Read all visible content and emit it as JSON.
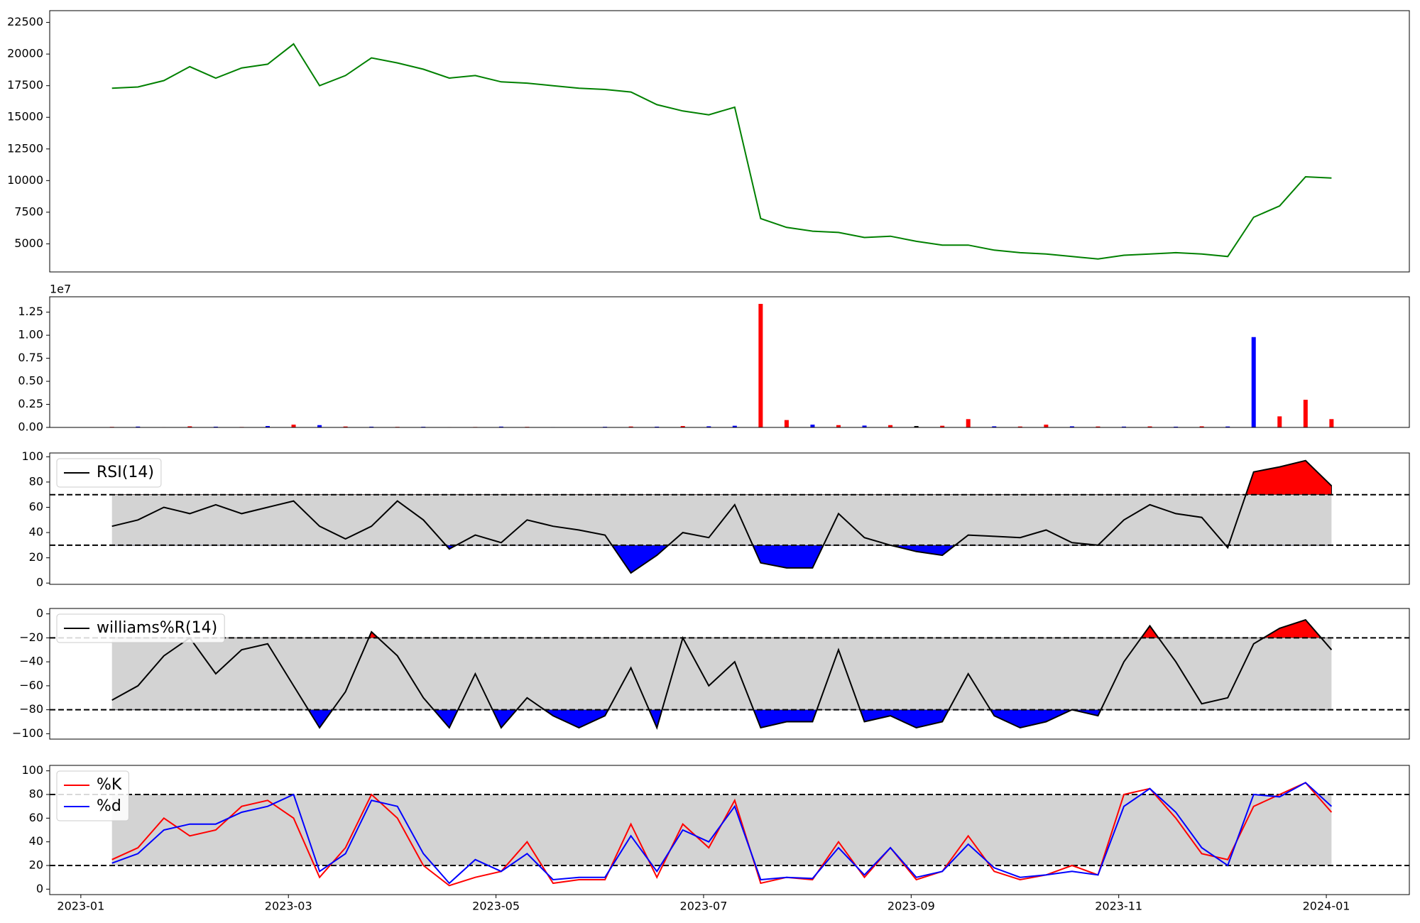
{
  "chart_data": [
    {
      "type": "line",
      "x": [
        0.3,
        0.55,
        0.8,
        1.05,
        1.3,
        1.55,
        1.8,
        2.05,
        2.3,
        2.55,
        2.8,
        3.05,
        3.3,
        3.55,
        3.8,
        4.05,
        4.3,
        4.55,
        4.8,
        5.05,
        5.3,
        5.55,
        5.8,
        6.05,
        6.3,
        6.55,
        6.8,
        7.05,
        7.3,
        7.55,
        7.8,
        8.05,
        8.3,
        8.55,
        8.8,
        9.05,
        9.3,
        9.55,
        9.8,
        10.05,
        10.3,
        10.55,
        10.8,
        11.05,
        11.3,
        11.55,
        11.8,
        12.05
      ],
      "series": [
        {
          "color": "green",
          "values": [
            17300,
            17400,
            17900,
            19000,
            18100,
            18900,
            19200,
            20800,
            17500,
            18300,
            19700,
            19300,
            18800,
            18100,
            18300,
            17800,
            17700,
            17500,
            17300,
            17200,
            17000,
            16000,
            15500,
            15200,
            15800,
            7000,
            6300,
            6000,
            5900,
            5500,
            5600,
            5200,
            4900,
            4900,
            4500,
            4300,
            4200,
            4000,
            3800,
            4100,
            4200,
            4300,
            4200,
            4000,
            7100,
            8000,
            10300,
            10200
          ]
        }
      ],
      "xlim": [
        -0.3,
        12.8
      ],
      "ylim": [
        2780,
        23430
      ],
      "yticks": [
        5000,
        7500,
        10000,
        12500,
        15000,
        17500,
        20000,
        22500
      ]
    },
    {
      "type": "bar",
      "x": [
        0.3,
        0.55,
        0.8,
        1.05,
        1.3,
        1.55,
        1.8,
        2.05,
        2.3,
        2.55,
        2.8,
        3.05,
        3.3,
        3.55,
        3.8,
        4.05,
        4.3,
        4.55,
        4.8,
        5.05,
        5.3,
        5.55,
        5.8,
        6.05,
        6.3,
        6.55,
        6.8,
        7.05,
        7.3,
        7.55,
        7.8,
        8.05,
        8.3,
        8.55,
        8.8,
        9.05,
        9.3,
        9.55,
        9.8,
        10.05,
        10.3,
        10.55,
        10.8,
        11.05,
        11.3,
        11.55,
        11.8,
        12.05
      ],
      "values": [
        60000,
        90000,
        40000,
        120000,
        80000,
        50000,
        150000,
        300000,
        250000,
        100000,
        80000,
        60000,
        70000,
        40000,
        50000,
        90000,
        60000,
        40000,
        30000,
        70000,
        100000,
        80000,
        150000,
        120000,
        180000,
        13400000,
        800000,
        300000,
        250000,
        200000,
        250000,
        150000,
        180000,
        900000,
        120000,
        100000,
        300000,
        120000,
        100000,
        90000,
        110000,
        80000,
        120000,
        100000,
        9800000,
        1200000,
        3000000,
        900000
      ],
      "colors": [
        "red",
        "blue",
        "red",
        "red",
        "blue",
        "red",
        "blue",
        "red",
        "blue",
        "red",
        "blue",
        "red",
        "blue",
        "red",
        "red",
        "blue",
        "red",
        "blue",
        "red",
        "blue",
        "red",
        "blue",
        "red",
        "blue",
        "blue",
        "red",
        "red",
        "blue",
        "red",
        "blue",
        "red",
        "black",
        "red",
        "red",
        "blue",
        "red",
        "red",
        "blue",
        "red",
        "blue",
        "red",
        "blue",
        "red",
        "blue",
        "blue",
        "red",
        "red",
        "red"
      ],
      "offset_label": "1e7",
      "xlim": [
        -0.3,
        12.8
      ],
      "ylim": [
        0,
        14170000
      ],
      "yticks": [
        {
          "value": 0,
          "label": "0.00"
        },
        {
          "value": 2500000,
          "label": "0.25"
        },
        {
          "value": 5000000,
          "label": "0.50"
        },
        {
          "value": 7500000,
          "label": "0.75"
        },
        {
          "value": 10000000,
          "label": "1.00"
        },
        {
          "value": 12500000,
          "label": "1.25"
        }
      ]
    },
    {
      "type": "oscillator",
      "x": [
        0.3,
        0.55,
        0.8,
        1.05,
        1.3,
        1.55,
        1.8,
        2.05,
        2.3,
        2.55,
        2.8,
        3.05,
        3.3,
        3.55,
        3.8,
        4.05,
        4.3,
        4.55,
        4.8,
        5.05,
        5.3,
        5.55,
        5.8,
        6.05,
        6.3,
        6.55,
        6.8,
        7.05,
        7.3,
        7.55,
        7.8,
        8.05,
        8.3,
        8.55,
        8.8,
        9.05,
        9.3,
        9.55,
        9.8,
        10.05,
        10.3,
        10.55,
        10.8,
        11.05,
        11.3,
        11.55,
        11.8,
        12.05
      ],
      "series": [
        {
          "name": "RSI(14)",
          "color": "black",
          "values": [
            45,
            50,
            60,
            55,
            62,
            55,
            60,
            65,
            45,
            35,
            45,
            65,
            50,
            27,
            38,
            32,
            50,
            45,
            42,
            38,
            8,
            22,
            40,
            36,
            62,
            16,
            12,
            12,
            55,
            36,
            30,
            25,
            22,
            38,
            37,
            36,
            42,
            32,
            30,
            50,
            62,
            55,
            52,
            28,
            88,
            92,
            97,
            77
          ]
        }
      ],
      "thresholds": [
        30,
        70
      ],
      "band_color": "lightgray",
      "above_color": "red",
      "below_color": "blue",
      "legend": "upper left",
      "xlim": [
        -0.3,
        12.8
      ],
      "ylim": [
        -1,
        103
      ],
      "yticks": [
        0,
        20,
        40,
        60,
        80,
        100
      ]
    },
    {
      "type": "oscillator",
      "x": [
        0.3,
        0.55,
        0.8,
        1.05,
        1.3,
        1.55,
        1.8,
        2.05,
        2.3,
        2.55,
        2.8,
        3.05,
        3.3,
        3.55,
        3.8,
        4.05,
        4.3,
        4.55,
        4.8,
        5.05,
        5.3,
        5.55,
        5.8,
        6.05,
        6.3,
        6.55,
        6.8,
        7.05,
        7.3,
        7.55,
        7.8,
        8.05,
        8.3,
        8.55,
        8.8,
        9.05,
        9.3,
        9.55,
        9.8,
        10.05,
        10.3,
        10.55,
        10.8,
        11.05,
        11.3,
        11.55,
        11.8,
        12.05
      ],
      "series": [
        {
          "name": "williams%R(14)",
          "color": "black",
          "values": [
            -72,
            -60,
            -35,
            -20,
            -50,
            -30,
            -25,
            -60,
            -95,
            -65,
            -15,
            -35,
            -70,
            -95,
            -50,
            -95,
            -70,
            -85,
            -95,
            -85,
            -45,
            -95,
            -20,
            -60,
            -40,
            -95,
            -90,
            -90,
            -30,
            -90,
            -85,
            -95,
            -90,
            -50,
            -85,
            -95,
            -90,
            -80,
            -85,
            -40,
            -10,
            -40,
            -75,
            -70,
            -25,
            -12,
            -5,
            -30
          ]
        }
      ],
      "thresholds": [
        -80,
        -20
      ],
      "band_color": "lightgray",
      "above_color": "red",
      "below_color": "blue",
      "legend": "upper left",
      "xlim": [
        -0.3,
        12.8
      ],
      "ylim": [
        -104.5,
        4.5
      ],
      "yticks": [
        {
          "value": -100,
          "label": "−100"
        },
        {
          "value": -80,
          "label": "−80"
        },
        {
          "value": -60,
          "label": "−60"
        },
        {
          "value": -40,
          "label": "−40"
        },
        {
          "value": -20,
          "label": "−20"
        },
        0
      ]
    },
    {
      "type": "oscillator",
      "x": [
        0.3,
        0.55,
        0.8,
        1.05,
        1.3,
        1.55,
        1.8,
        2.05,
        2.3,
        2.55,
        2.8,
        3.05,
        3.3,
        3.55,
        3.8,
        4.05,
        4.3,
        4.55,
        4.8,
        5.05,
        5.3,
        5.55,
        5.8,
        6.05,
        6.3,
        6.55,
        6.8,
        7.05,
        7.3,
        7.55,
        7.8,
        8.05,
        8.3,
        8.55,
        8.8,
        9.05,
        9.3,
        9.55,
        9.8,
        10.05,
        10.3,
        10.55,
        10.8,
        11.05,
        11.3,
        11.55,
        11.8,
        12.05
      ],
      "series": [
        {
          "name": "%K",
          "color": "red",
          "values": [
            25,
            35,
            60,
            45,
            50,
            70,
            75,
            60,
            10,
            35,
            80,
            60,
            20,
            3,
            10,
            15,
            40,
            5,
            8,
            8,
            55,
            10,
            55,
            35,
            75,
            5,
            10,
            8,
            40,
            10,
            35,
            8,
            15,
            45,
            15,
            8,
            12,
            20,
            12,
            80,
            85,
            60,
            30,
            25,
            70,
            80,
            90,
            65
          ]
        },
        {
          "name": "%d",
          "color": "blue",
          "values": [
            22,
            30,
            50,
            55,
            55,
            65,
            70,
            80,
            15,
            30,
            75,
            70,
            30,
            5,
            25,
            15,
            30,
            8,
            10,
            10,
            45,
            15,
            50,
            40,
            70,
            8,
            10,
            9,
            35,
            12,
            35,
            10,
            15,
            38,
            18,
            10,
            12,
            15,
            12,
            70,
            85,
            65,
            35,
            20,
            80,
            78,
            90,
            70
          ]
        }
      ],
      "thresholds": [
        20,
        80
      ],
      "band_color": "lightgray",
      "legend": "upper left",
      "xlim": [
        -0.3,
        12.8
      ],
      "ylim": [
        -4.6,
        104.6
      ],
      "yticks": [
        0,
        20,
        40,
        60,
        80,
        100
      ],
      "xticks": [
        {
          "value": 0,
          "label": "2023-01"
        },
        {
          "value": 2,
          "label": "2023-03"
        },
        {
          "value": 4,
          "label": "2023-05"
        },
        {
          "value": 6,
          "label": "2023-07"
        },
        {
          "value": 8,
          "label": "2023-09"
        },
        {
          "value": 10,
          "label": "2023-11"
        },
        {
          "value": 12,
          "label": "2024-01"
        }
      ]
    }
  ]
}
